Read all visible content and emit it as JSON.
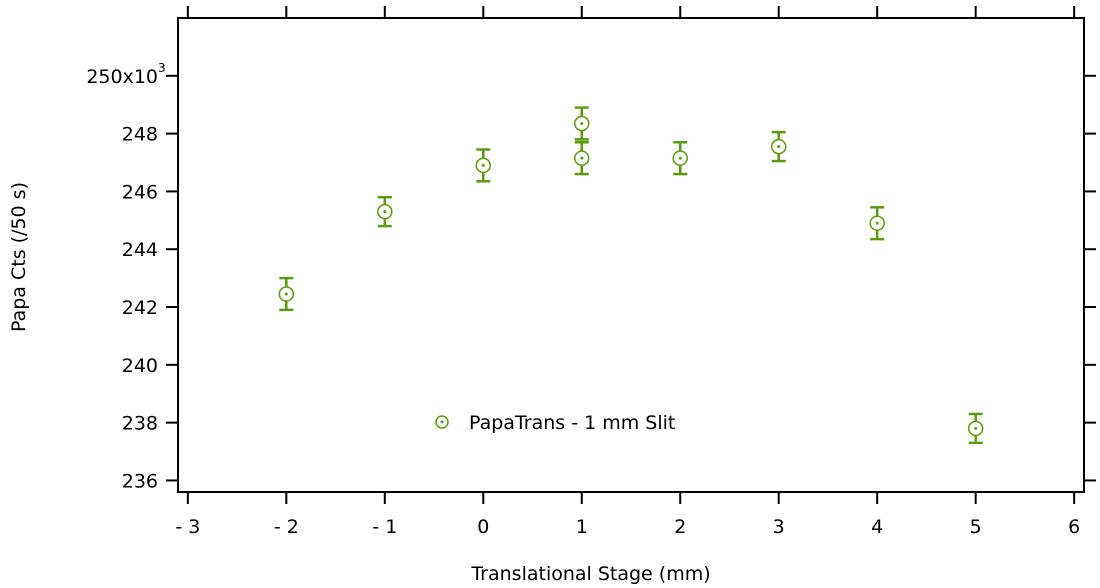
{
  "chart_data": {
    "type": "scatter",
    "xlabel": "Translational Stage (mm)",
    "ylabel": "Papa Cts (/50 s)",
    "xlim": [
      -3.1,
      6.1
    ],
    "ylim": [
      235.6,
      252
    ],
    "x_ticks": [
      -3,
      -2,
      -1,
      0,
      1,
      2,
      3,
      4,
      5,
      6
    ],
    "x_tick_labels": [
      "- 3",
      "- 2",
      "- 1",
      "0",
      "1",
      "2",
      "3",
      "4",
      "5",
      "6"
    ],
    "y_ticks": [
      236,
      238,
      240,
      242,
      244,
      246,
      248,
      250
    ],
    "y_tick_labels": [
      "236",
      "238",
      "240",
      "242",
      "244",
      "246",
      "248",
      "250x10"
    ],
    "y_multiplier_exponent": "3",
    "grid": false,
    "legend_position": "center-bottom",
    "series": [
      {
        "name": "PapaTrans - 1 mm Slit",
        "color": "#5a9a10",
        "marker": "circle-dot",
        "points": [
          {
            "x": -2,
            "y": 242.45,
            "err": 0.55
          },
          {
            "x": -1,
            "y": 245.3,
            "err": 0.5
          },
          {
            "x": 0,
            "y": 246.9,
            "err": 0.55
          },
          {
            "x": 1,
            "y": 247.15,
            "err": 0.55
          },
          {
            "x": 1,
            "y": 248.35,
            "err": 0.55
          },
          {
            "x": 2,
            "y": 247.15,
            "err": 0.55
          },
          {
            "x": 3,
            "y": 247.55,
            "err": 0.5
          },
          {
            "x": 4,
            "y": 244.9,
            "err": 0.55
          },
          {
            "x": 5,
            "y": 237.8,
            "err": 0.5
          }
        ]
      }
    ]
  }
}
